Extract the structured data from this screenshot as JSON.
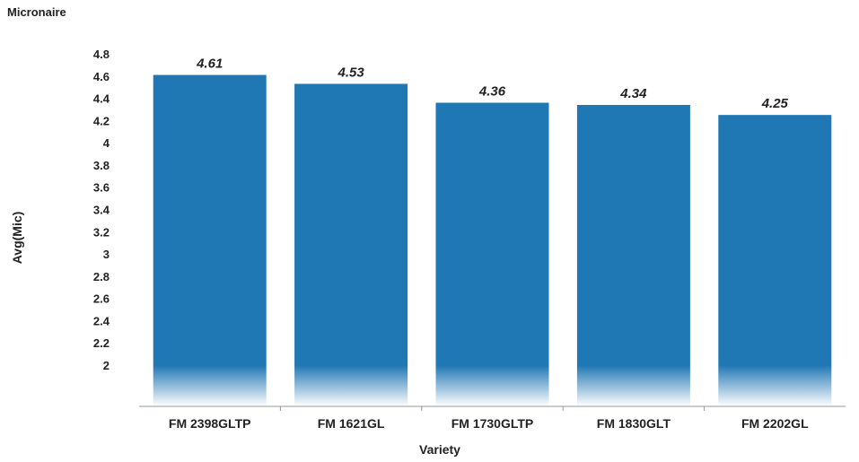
{
  "title": "Micronaire",
  "chart_data": {
    "type": "bar",
    "categories": [
      "FM 2398GLTP",
      "FM 1621GL",
      "FM 1730GLTP",
      "FM 1830GLT",
      "FM 2202GL"
    ],
    "values": [
      4.61,
      4.53,
      4.36,
      4.34,
      4.25
    ],
    "data_labels": [
      "4.61",
      "4.53",
      "4.36",
      "4.34",
      "4.25"
    ],
    "xlabel": "Variety",
    "ylabel": "Avg(Mic)",
    "yticks": [
      "2",
      "2.2",
      "2.4",
      "2.6",
      "2.8",
      "3",
      "3.2",
      "3.4",
      "3.6",
      "3.8",
      "4",
      "4.2",
      "4.4",
      "4.6",
      "4.8"
    ],
    "ylim": [
      1.65,
      4.95
    ],
    "axis_break_below": 2,
    "grid": false,
    "bar_color": "#1F77B4"
  }
}
